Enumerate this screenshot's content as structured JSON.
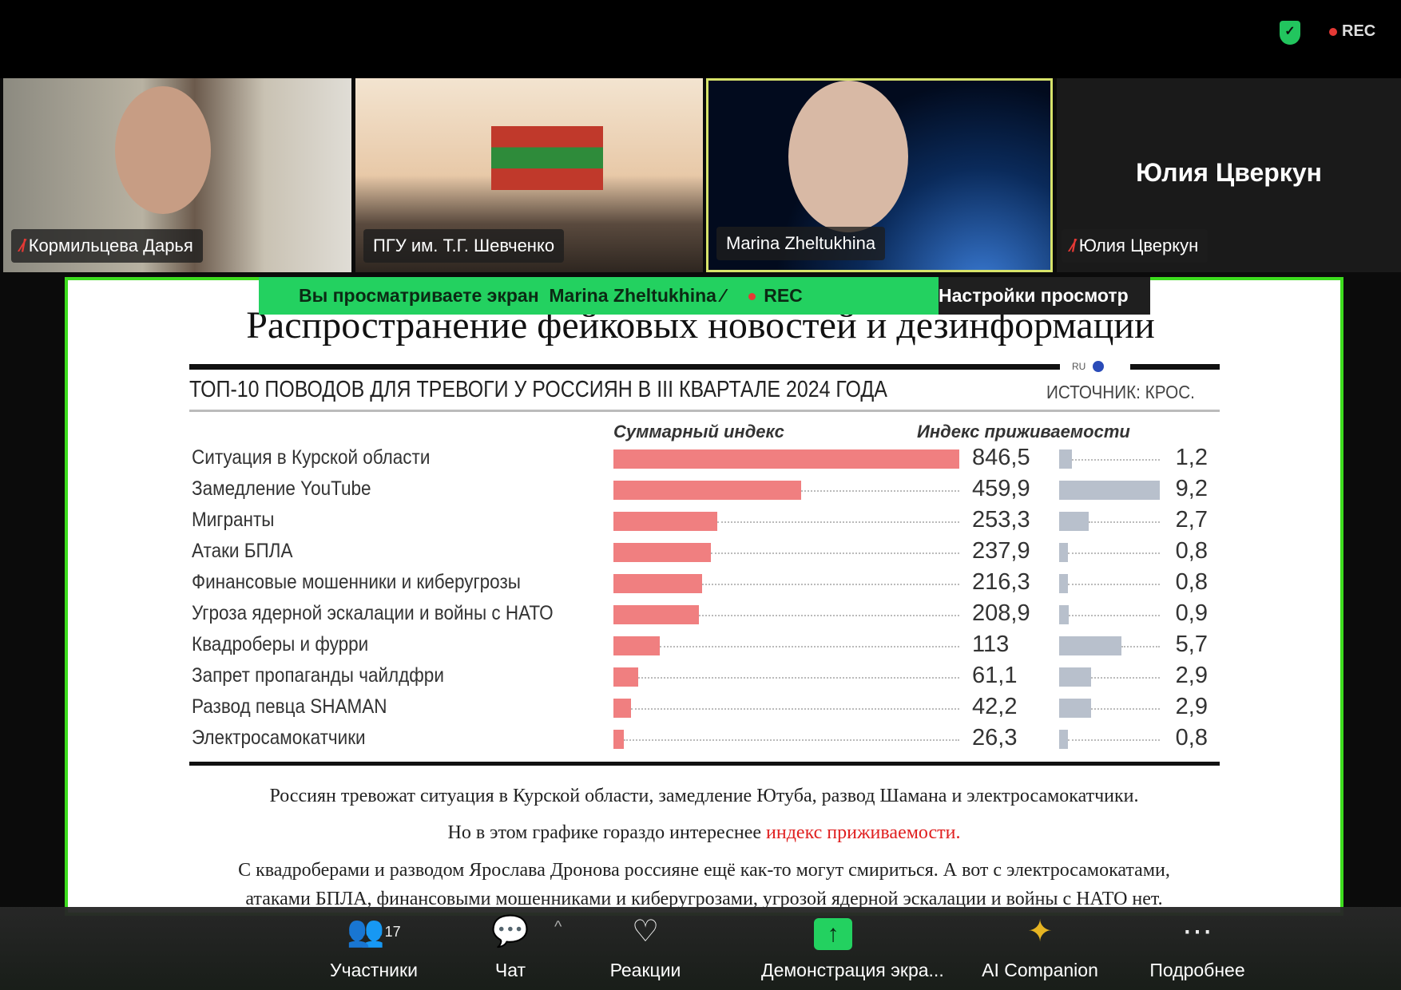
{
  "status": {
    "rec": "REC",
    "shield_icon": "shield-check-icon"
  },
  "participants_tiles": [
    {
      "name": "Кормильцева Дарья",
      "muted": true
    },
    {
      "name": "ПГУ им. Т.Г. Шевченко",
      "muted": false
    },
    {
      "name": "Marina Zheltukhina",
      "muted": false,
      "active_speaker": true
    },
    {
      "name": "Юлия Цверкун",
      "muted": true,
      "display_name": "Юлия Цверкун"
    }
  ],
  "banner": {
    "text": "Вы просматриваете экран",
    "presenter": "Marina Zheltukhina",
    "rec": "REC",
    "settings": "Настройки просмотр"
  },
  "shared": {
    "title": "Распространение  фейковых новостей  и дезинформации",
    "lang_badge": "RU",
    "paragraphs": [
      "Россиян тревожат ситуация в Курской области, замедление Ютуба, развод Шамана и электросамокатчики.",
      "Но в этом графике гораздо интереснее ",
      "индекс приживаемости.",
      "С квадроберами и разводом Ярослава Дронова россияне ещё как-то могут смириться. А вот с электросамокатами,",
      "атаками БПЛА, финансовыми мошенниками и киберугрозами, угрозой ядерной эскалации и войны с НАТО нет."
    ]
  },
  "chart_data": {
    "type": "bar",
    "title": "ТОП-10 ПОВОДОВ ДЛЯ ТРЕВОГИ У РОССИЯН В III КВАРТАЛЕ 2024 ГОДА",
    "source": "ИСТОЧНИК: КРОС.",
    "categories": [
      "Ситуация в Курской области",
      "Замедление YouTube",
      "Мигранты",
      "Атаки БПЛА",
      "Финансовые мошенники и киберугрозы",
      "Угроза ядерной эскалации и войны с НАТО",
      "Квадроберы и фурри",
      "Запрет пропаганды чайлдфри",
      "Развод певца SHAMAN",
      "Электросамокатчики"
    ],
    "series": [
      {
        "name": "Суммарный индекс",
        "color": "#f07f80",
        "labels": [
          "846,5",
          "459,9",
          "253,3",
          "237,9",
          "216,3",
          "208,9",
          "113",
          "61,1",
          "42,2",
          "26,3"
        ],
        "values": [
          846.5,
          459.9,
          253.3,
          237.9,
          216.3,
          208.9,
          113,
          61.1,
          42.2,
          26.3
        ]
      },
      {
        "name": "Индекс приживаемости",
        "color": "#b8c0cc",
        "labels": [
          "1,2",
          "9,2",
          "2,7",
          "0,8",
          "0,8",
          "0,9",
          "5,7",
          "2,9",
          "2,9",
          "0,8"
        ],
        "values": [
          1.2,
          9.2,
          2.7,
          0.8,
          0.8,
          0.9,
          5.7,
          2.9,
          2.9,
          0.8
        ]
      }
    ]
  },
  "toolbar": {
    "participants": {
      "label": "Участники",
      "count": "17"
    },
    "chat": {
      "label": "Чат"
    },
    "reactions": {
      "label": "Реакции"
    },
    "share": {
      "label": "Демонстрация экра..."
    },
    "ai": {
      "label": "AI Companion"
    },
    "more": {
      "label": "Подробнее"
    }
  }
}
